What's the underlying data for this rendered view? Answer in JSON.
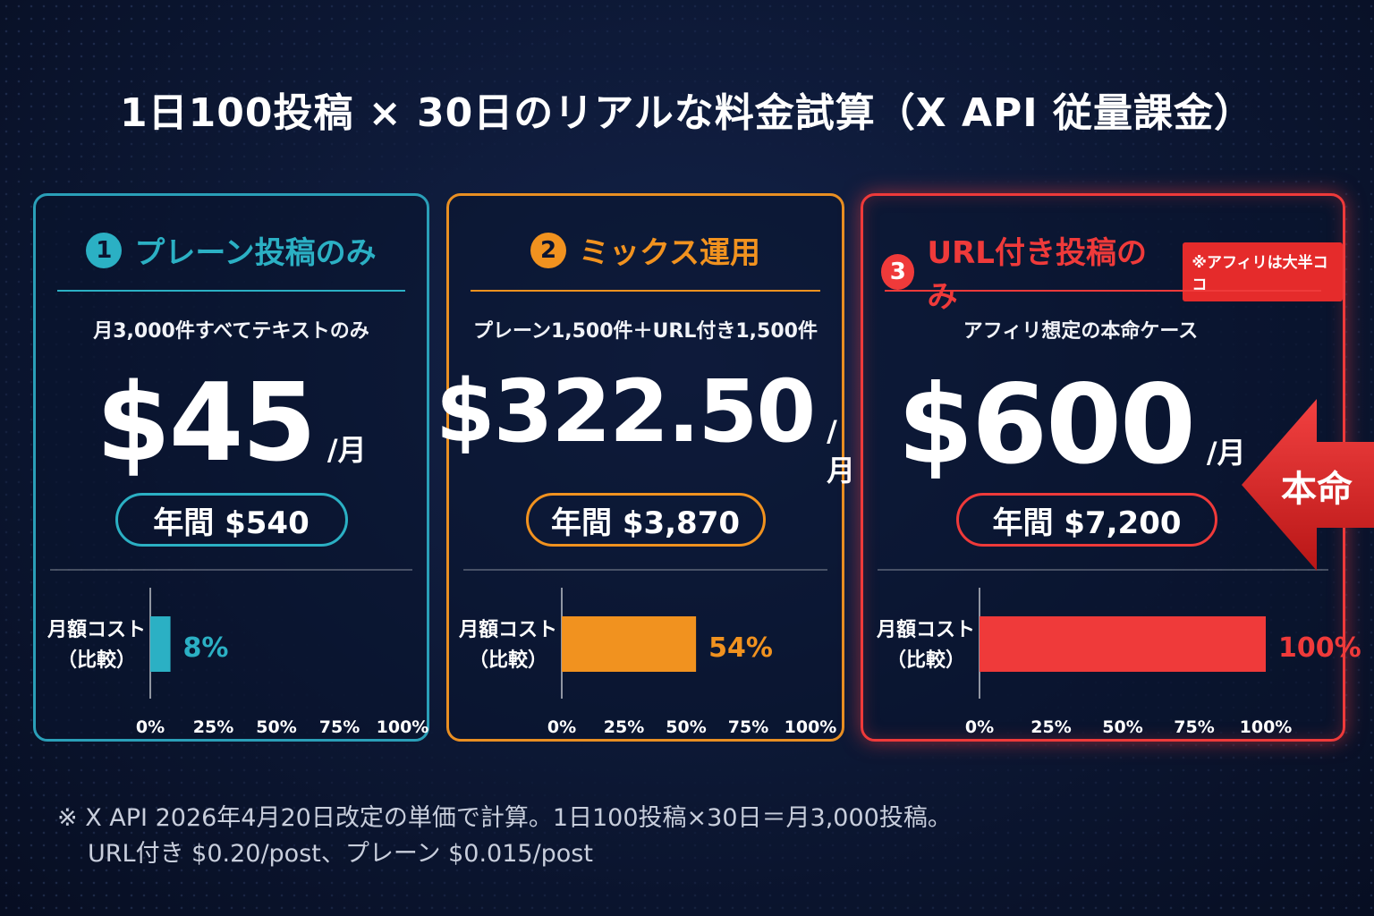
{
  "title": "1日100投稿 × 30日のリアルな料金試算（X API 従量課金）",
  "cards": [
    {
      "number": "1",
      "heading": "プレーン投稿のみ",
      "subtitle": "月3,000件すべてテキストのみ",
      "price": "$45",
      "unit": "/月",
      "annual": "年間 $540",
      "color": "#2bb0c4",
      "cost_label_1": "月額コスト",
      "cost_label_2": "（比較）"
    },
    {
      "number": "2",
      "heading": "ミックス運用",
      "subtitle": "プレーン1,500件＋URL付き1,500件",
      "price": "$322.50",
      "unit": "/月",
      "annual": "年間 $3,870",
      "color": "#f1921f",
      "cost_label_1": "月額コスト",
      "cost_label_2": "（比較）"
    },
    {
      "number": "3",
      "heading": "URL付き投稿のみ",
      "tag": "※アフィリは大半ココ",
      "subtitle": "アフィリ想定の本命ケース",
      "price": "$600",
      "unit": "/月",
      "annual": "年間 $7,200",
      "color": "#ef3a3a",
      "cost_label_1": "月額コスト",
      "cost_label_2": "（比較）"
    }
  ],
  "arrow_label": "本命",
  "chart_data": {
    "type": "bar",
    "orientation": "horizontal",
    "ylabel": "月額コスト（比較）",
    "xlim": [
      0,
      100
    ],
    "ticks": [
      "0%",
      "25%",
      "50%",
      "75%",
      "100%"
    ],
    "series": [
      {
        "name": "プレーン投稿のみ",
        "value": 8,
        "label": "8%"
      },
      {
        "name": "ミックス運用",
        "value": 54,
        "label": "54%"
      },
      {
        "name": "URL付き投稿のみ",
        "value": 100,
        "label": "100%"
      }
    ]
  },
  "footnote": {
    "line1": "※ X API 2026年4月20日改定の単価で計算。1日100投稿×30日＝月3,000投稿。",
    "line2": "URL付き $0.20/post、プレーン $0.015/post"
  }
}
